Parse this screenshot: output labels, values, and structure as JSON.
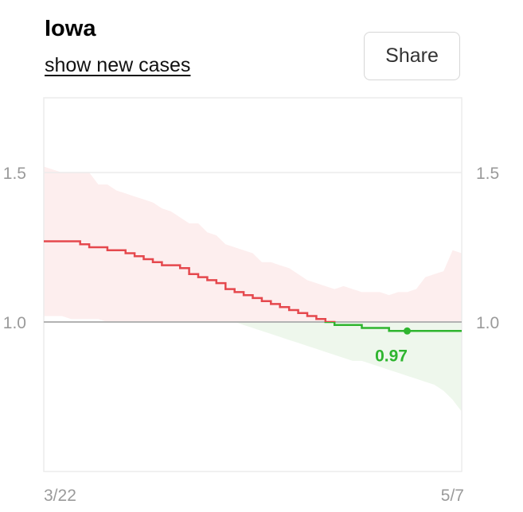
{
  "header": {
    "title": "Iowa",
    "toggle_label": "show new cases",
    "share_label": "Share"
  },
  "colors": {
    "above_line": "#e5484d",
    "below_line": "#2fb52f",
    "above_band": "#fdeeee",
    "below_band": "#eef7ec",
    "reference_line": "#b3b3b3",
    "grid": "#ececec",
    "axis_text": "#9a9a9a"
  },
  "chart_data": {
    "type": "line",
    "title": "",
    "xlabel": "",
    "ylabel": "",
    "x_ticks": [
      "3/22",
      "5/7"
    ],
    "x_range": [
      "3/22",
      "5/7"
    ],
    "y_ticks": [
      "1.0",
      "1.5"
    ],
    "ylim": [
      0.5,
      1.75
    ],
    "reference_value": 1.0,
    "grid": "horizontal",
    "x": [
      "3/22",
      "3/23",
      "3/24",
      "3/25",
      "3/26",
      "3/27",
      "3/28",
      "3/29",
      "3/30",
      "3/31",
      "4/1",
      "4/2",
      "4/3",
      "4/4",
      "4/5",
      "4/6",
      "4/7",
      "4/8",
      "4/9",
      "4/10",
      "4/11",
      "4/12",
      "4/13",
      "4/14",
      "4/15",
      "4/16",
      "4/17",
      "4/18",
      "4/19",
      "4/20",
      "4/21",
      "4/22",
      "4/23",
      "4/24",
      "4/25",
      "4/26",
      "4/27",
      "4/28",
      "4/29",
      "4/30",
      "5/1",
      "5/2",
      "5/3",
      "5/4",
      "5/5",
      "5/6",
      "5/7"
    ],
    "series": [
      {
        "values": [
          1.27,
          1.27,
          1.27,
          1.27,
          1.26,
          1.25,
          1.25,
          1.24,
          1.24,
          1.23,
          1.22,
          1.21,
          1.2,
          1.19,
          1.19,
          1.18,
          1.16,
          1.15,
          1.14,
          1.13,
          1.11,
          1.1,
          1.09,
          1.08,
          1.07,
          1.06,
          1.05,
          1.04,
          1.03,
          1.02,
          1.01,
          1.0,
          0.99,
          0.99,
          0.99,
          0.98,
          0.98,
          0.98,
          0.97,
          0.97,
          0.97,
          0.97,
          0.97,
          0.97,
          0.97,
          0.97,
          0.97
        ],
        "lower": [
          1.02,
          1.02,
          1.02,
          1.01,
          1.01,
          1.01,
          1.01,
          1.0,
          1.0,
          1.0,
          1.0,
          1.0,
          1.0,
          1.0,
          1.0,
          1.0,
          1.0,
          1.0,
          1.0,
          1.0,
          1.0,
          1.0,
          0.99,
          0.98,
          0.97,
          0.96,
          0.95,
          0.94,
          0.93,
          0.92,
          0.91,
          0.9,
          0.89,
          0.88,
          0.87,
          0.87,
          0.86,
          0.85,
          0.84,
          0.83,
          0.82,
          0.81,
          0.8,
          0.79,
          0.77,
          0.74,
          0.7
        ],
        "upper": [
          1.52,
          1.51,
          1.5,
          1.5,
          1.5,
          1.5,
          1.46,
          1.46,
          1.44,
          1.43,
          1.42,
          1.41,
          1.4,
          1.38,
          1.37,
          1.35,
          1.33,
          1.33,
          1.3,
          1.29,
          1.26,
          1.25,
          1.24,
          1.23,
          1.2,
          1.2,
          1.19,
          1.18,
          1.16,
          1.14,
          1.13,
          1.12,
          1.11,
          1.12,
          1.11,
          1.1,
          1.1,
          1.1,
          1.09,
          1.1,
          1.1,
          1.11,
          1.15,
          1.16,
          1.17,
          1.24,
          1.23
        ]
      }
    ],
    "current_value_label": "0.97",
    "projection": {
      "from": "5/1",
      "to": "5/7",
      "value": 0.97
    }
  }
}
